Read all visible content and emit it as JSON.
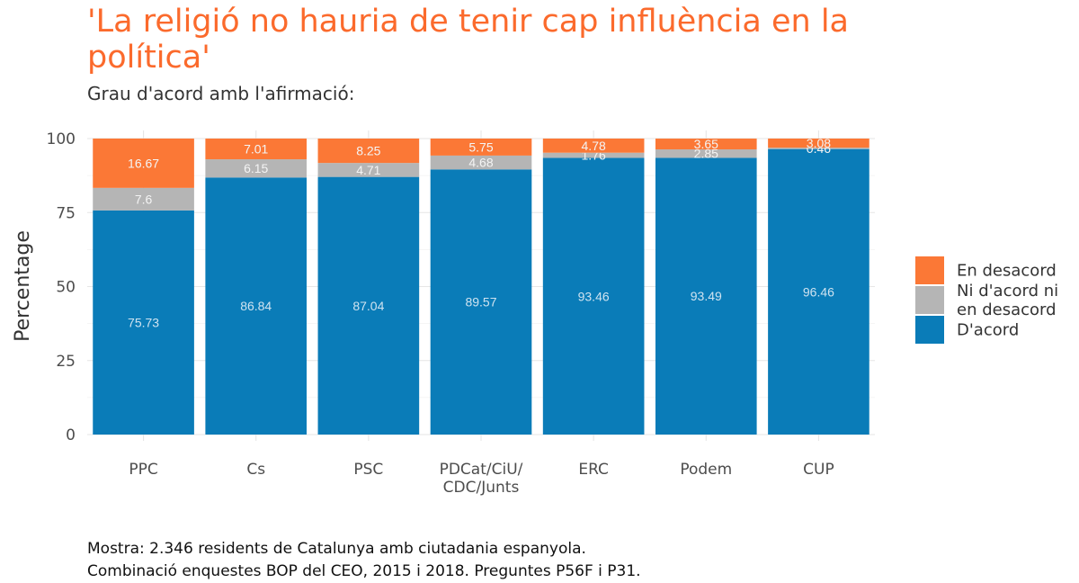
{
  "chart_data": {
    "type": "bar",
    "stacked": true,
    "title": "'La religió no hauria de tenir cap influència en la política'",
    "subtitle": "Grau d'acord amb l'afirmació:",
    "xlabel": "",
    "ylabel": "Percentage",
    "ylim": [
      0,
      100
    ],
    "yticks": [
      "0",
      "25",
      "50",
      "75",
      "100"
    ],
    "categories": [
      [
        "PPC"
      ],
      [
        "Cs"
      ],
      [
        "PSC"
      ],
      [
        "PDCat/CiU/",
        "CDC/Junts"
      ],
      [
        "ERC"
      ],
      [
        "Podem"
      ],
      [
        "CUP"
      ]
    ],
    "series": [
      {
        "name": "D'acord",
        "legend_lines": [
          "D'acord"
        ],
        "color": "#0a7cb8",
        "values": [
          75.73,
          86.84,
          87.04,
          89.57,
          93.46,
          93.49,
          96.46
        ]
      },
      {
        "name": "Ni d'acord ni en desacord",
        "legend_lines": [
          "Ni d'acord ni",
          "en desacord"
        ],
        "color": "#b5b5b5",
        "values": [
          7.6,
          6.15,
          4.71,
          4.68,
          1.76,
          2.85,
          0.46
        ]
      },
      {
        "name": "En desacord",
        "legend_lines": [
          "En desacord"
        ],
        "color": "#fb7836",
        "values": [
          16.67,
          7.01,
          8.25,
          5.75,
          4.78,
          3.65,
          3.08
        ]
      }
    ],
    "legend_position": "right",
    "title_color": "#fb6a2c"
  },
  "caption": [
    "Mostra: 2.346 residents de Catalunya amb ciutadania espanyola.",
    "Combinació enquestes BOP del CEO, 2015 i 2018. Preguntes P56F i P31."
  ]
}
